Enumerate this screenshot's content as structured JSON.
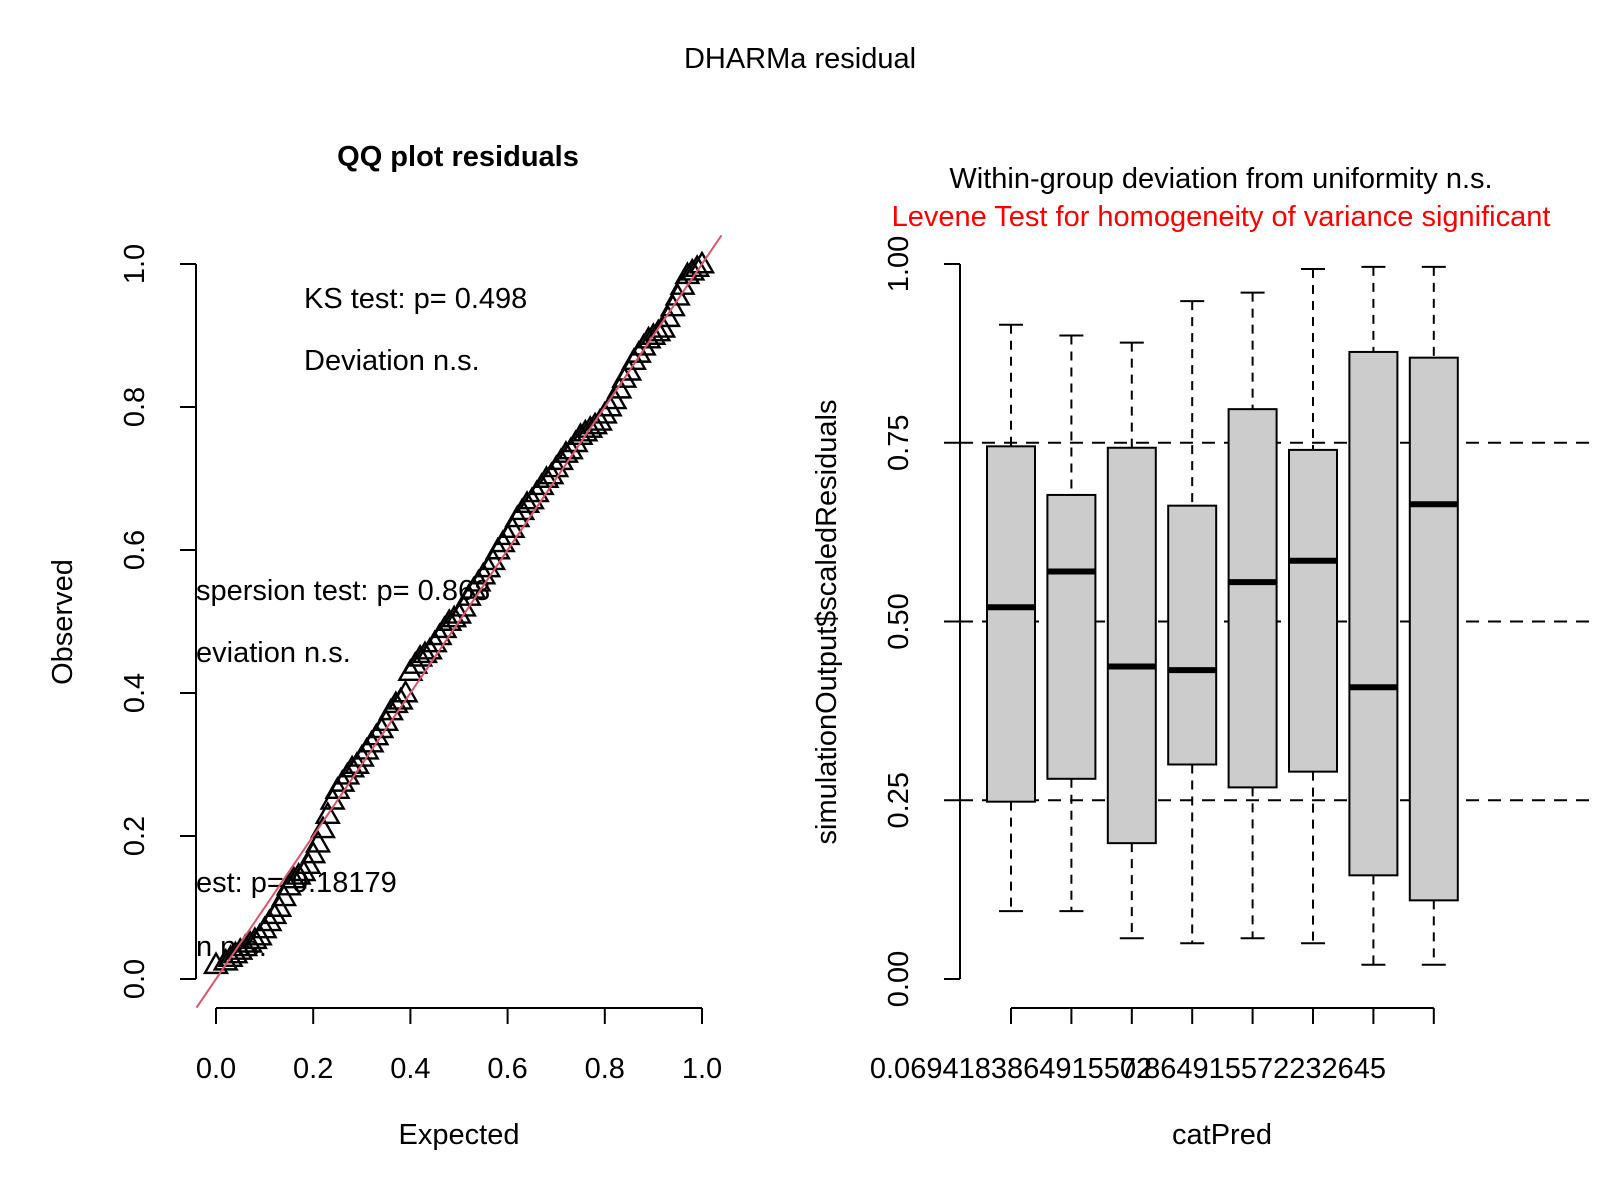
{
  "figure": {
    "title": "DHARMa residual"
  },
  "chart_data": [
    {
      "type": "scatter",
      "title": "QQ plot residuals",
      "xlabel": "Expected",
      "ylabel": "Observed",
      "xlim": [
        0,
        1
      ],
      "ylim": [
        0,
        1
      ],
      "x_ticks": [
        "0.0",
        "0.2",
        "0.4",
        "0.6",
        "0.8",
        "1.0"
      ],
      "y_ticks": [
        "0.0",
        "0.2",
        "0.4",
        "0.6",
        "0.8",
        "1.0"
      ],
      "reference_line": {
        "intercept": 0,
        "slope": 1,
        "color": "#DF536B"
      },
      "marker": "triangle",
      "points": [
        [
          0.0,
          0.02
        ],
        [
          0.02,
          0.025
        ],
        [
          0.03,
          0.03
        ],
        [
          0.04,
          0.035
        ],
        [
          0.05,
          0.04
        ],
        [
          0.06,
          0.045
        ],
        [
          0.07,
          0.05
        ],
        [
          0.08,
          0.055
        ],
        [
          0.09,
          0.06
        ],
        [
          0.1,
          0.07
        ],
        [
          0.11,
          0.08
        ],
        [
          0.12,
          0.09
        ],
        [
          0.13,
          0.1
        ],
        [
          0.14,
          0.115
        ],
        [
          0.15,
          0.13
        ],
        [
          0.16,
          0.14
        ],
        [
          0.17,
          0.145
        ],
        [
          0.18,
          0.15
        ],
        [
          0.19,
          0.16
        ],
        [
          0.2,
          0.175
        ],
        [
          0.21,
          0.19
        ],
        [
          0.22,
          0.21
        ],
        [
          0.23,
          0.23
        ],
        [
          0.24,
          0.25
        ],
        [
          0.25,
          0.265
        ],
        [
          0.26,
          0.275
        ],
        [
          0.27,
          0.285
        ],
        [
          0.28,
          0.295
        ],
        [
          0.29,
          0.3
        ],
        [
          0.3,
          0.31
        ],
        [
          0.31,
          0.32
        ],
        [
          0.32,
          0.33
        ],
        [
          0.33,
          0.34
        ],
        [
          0.34,
          0.35
        ],
        [
          0.35,
          0.36
        ],
        [
          0.36,
          0.375
        ],
        [
          0.37,
          0.385
        ],
        [
          0.38,
          0.39
        ],
        [
          0.39,
          0.4
        ],
        [
          0.4,
          0.43
        ],
        [
          0.41,
          0.44
        ],
        [
          0.42,
          0.45
        ],
        [
          0.43,
          0.455
        ],
        [
          0.44,
          0.46
        ],
        [
          0.45,
          0.47
        ],
        [
          0.46,
          0.48
        ],
        [
          0.47,
          0.49
        ],
        [
          0.48,
          0.5
        ],
        [
          0.49,
          0.505
        ],
        [
          0.5,
          0.51
        ],
        [
          0.51,
          0.52
        ],
        [
          0.52,
          0.535
        ],
        [
          0.53,
          0.545
        ],
        [
          0.54,
          0.555
        ],
        [
          0.55,
          0.565
        ],
        [
          0.56,
          0.575
        ],
        [
          0.57,
          0.585
        ],
        [
          0.58,
          0.6
        ],
        [
          0.59,
          0.61
        ],
        [
          0.6,
          0.62
        ],
        [
          0.61,
          0.63
        ],
        [
          0.62,
          0.645
        ],
        [
          0.63,
          0.655
        ],
        [
          0.64,
          0.665
        ],
        [
          0.65,
          0.67
        ],
        [
          0.66,
          0.68
        ],
        [
          0.67,
          0.69
        ],
        [
          0.68,
          0.7
        ],
        [
          0.69,
          0.705
        ],
        [
          0.7,
          0.715
        ],
        [
          0.71,
          0.725
        ],
        [
          0.72,
          0.735
        ],
        [
          0.73,
          0.74
        ],
        [
          0.74,
          0.75
        ],
        [
          0.75,
          0.76
        ],
        [
          0.76,
          0.765
        ],
        [
          0.77,
          0.77
        ],
        [
          0.78,
          0.775
        ],
        [
          0.79,
          0.78
        ],
        [
          0.8,
          0.79
        ],
        [
          0.81,
          0.8
        ],
        [
          0.82,
          0.81
        ],
        [
          0.83,
          0.825
        ],
        [
          0.84,
          0.84
        ],
        [
          0.85,
          0.85
        ],
        [
          0.86,
          0.865
        ],
        [
          0.87,
          0.875
        ],
        [
          0.88,
          0.885
        ],
        [
          0.89,
          0.895
        ],
        [
          0.9,
          0.9
        ],
        [
          0.91,
          0.905
        ],
        [
          0.92,
          0.91
        ],
        [
          0.93,
          0.925
        ],
        [
          0.94,
          0.94
        ],
        [
          0.95,
          0.955
        ],
        [
          0.96,
          0.97
        ],
        [
          0.97,
          0.985
        ],
        [
          0.98,
          0.99
        ],
        [
          0.99,
          0.995
        ],
        [
          1.0,
          1.0
        ]
      ],
      "annotations": {
        "ks": [
          "KS test: p= 0.498",
          "Deviation  n.s."
        ],
        "dispersion": [
          "spersion test: p= 0.868",
          "eviation  n.s."
        ],
        "outlier": [
          "est: p= 0.18179",
          "n  n.s."
        ]
      }
    },
    {
      "type": "box",
      "title": "Within-group deviation from uniformity n.s.",
      "subtitle": "Levene Test for homogeneity of variance significant",
      "subtitle_color": "#FF0000",
      "xlabel": "catPred",
      "ylabel": "simulationOutput$scaledResiduals",
      "ylim": [
        0,
        1
      ],
      "y_ticks": [
        "0.00",
        "0.25",
        "0.50",
        "0.75",
        "1.00"
      ],
      "x_tick_labels": [
        "0.0694183864915572",
        "0.864915572232645"
      ],
      "reference_lines": [
        0.25,
        0.5,
        0.75
      ],
      "boxes": [
        {
          "min": 0.095,
          "q1": 0.248,
          "median": 0.52,
          "q3": 0.745,
          "max": 0.915
        },
        {
          "min": 0.095,
          "q1": 0.28,
          "median": 0.57,
          "q3": 0.677,
          "max": 0.9
        },
        {
          "min": 0.057,
          "q1": 0.19,
          "median": 0.437,
          "q3": 0.743,
          "max": 0.89
        },
        {
          "min": 0.05,
          "q1": 0.3,
          "median": 0.432,
          "q3": 0.662,
          "max": 0.948
        },
        {
          "min": 0.057,
          "q1": 0.268,
          "median": 0.555,
          "q3": 0.797,
          "max": 0.96
        },
        {
          "min": 0.05,
          "q1": 0.29,
          "median": 0.585,
          "q3": 0.74,
          "max": 0.993
        },
        {
          "min": 0.02,
          "q1": 0.145,
          "median": 0.408,
          "q3": 0.877,
          "max": 0.996
        },
        {
          "min": 0.02,
          "q1": 0.11,
          "median": 0.664,
          "q3": 0.869,
          "max": 0.996
        }
      ]
    }
  ]
}
